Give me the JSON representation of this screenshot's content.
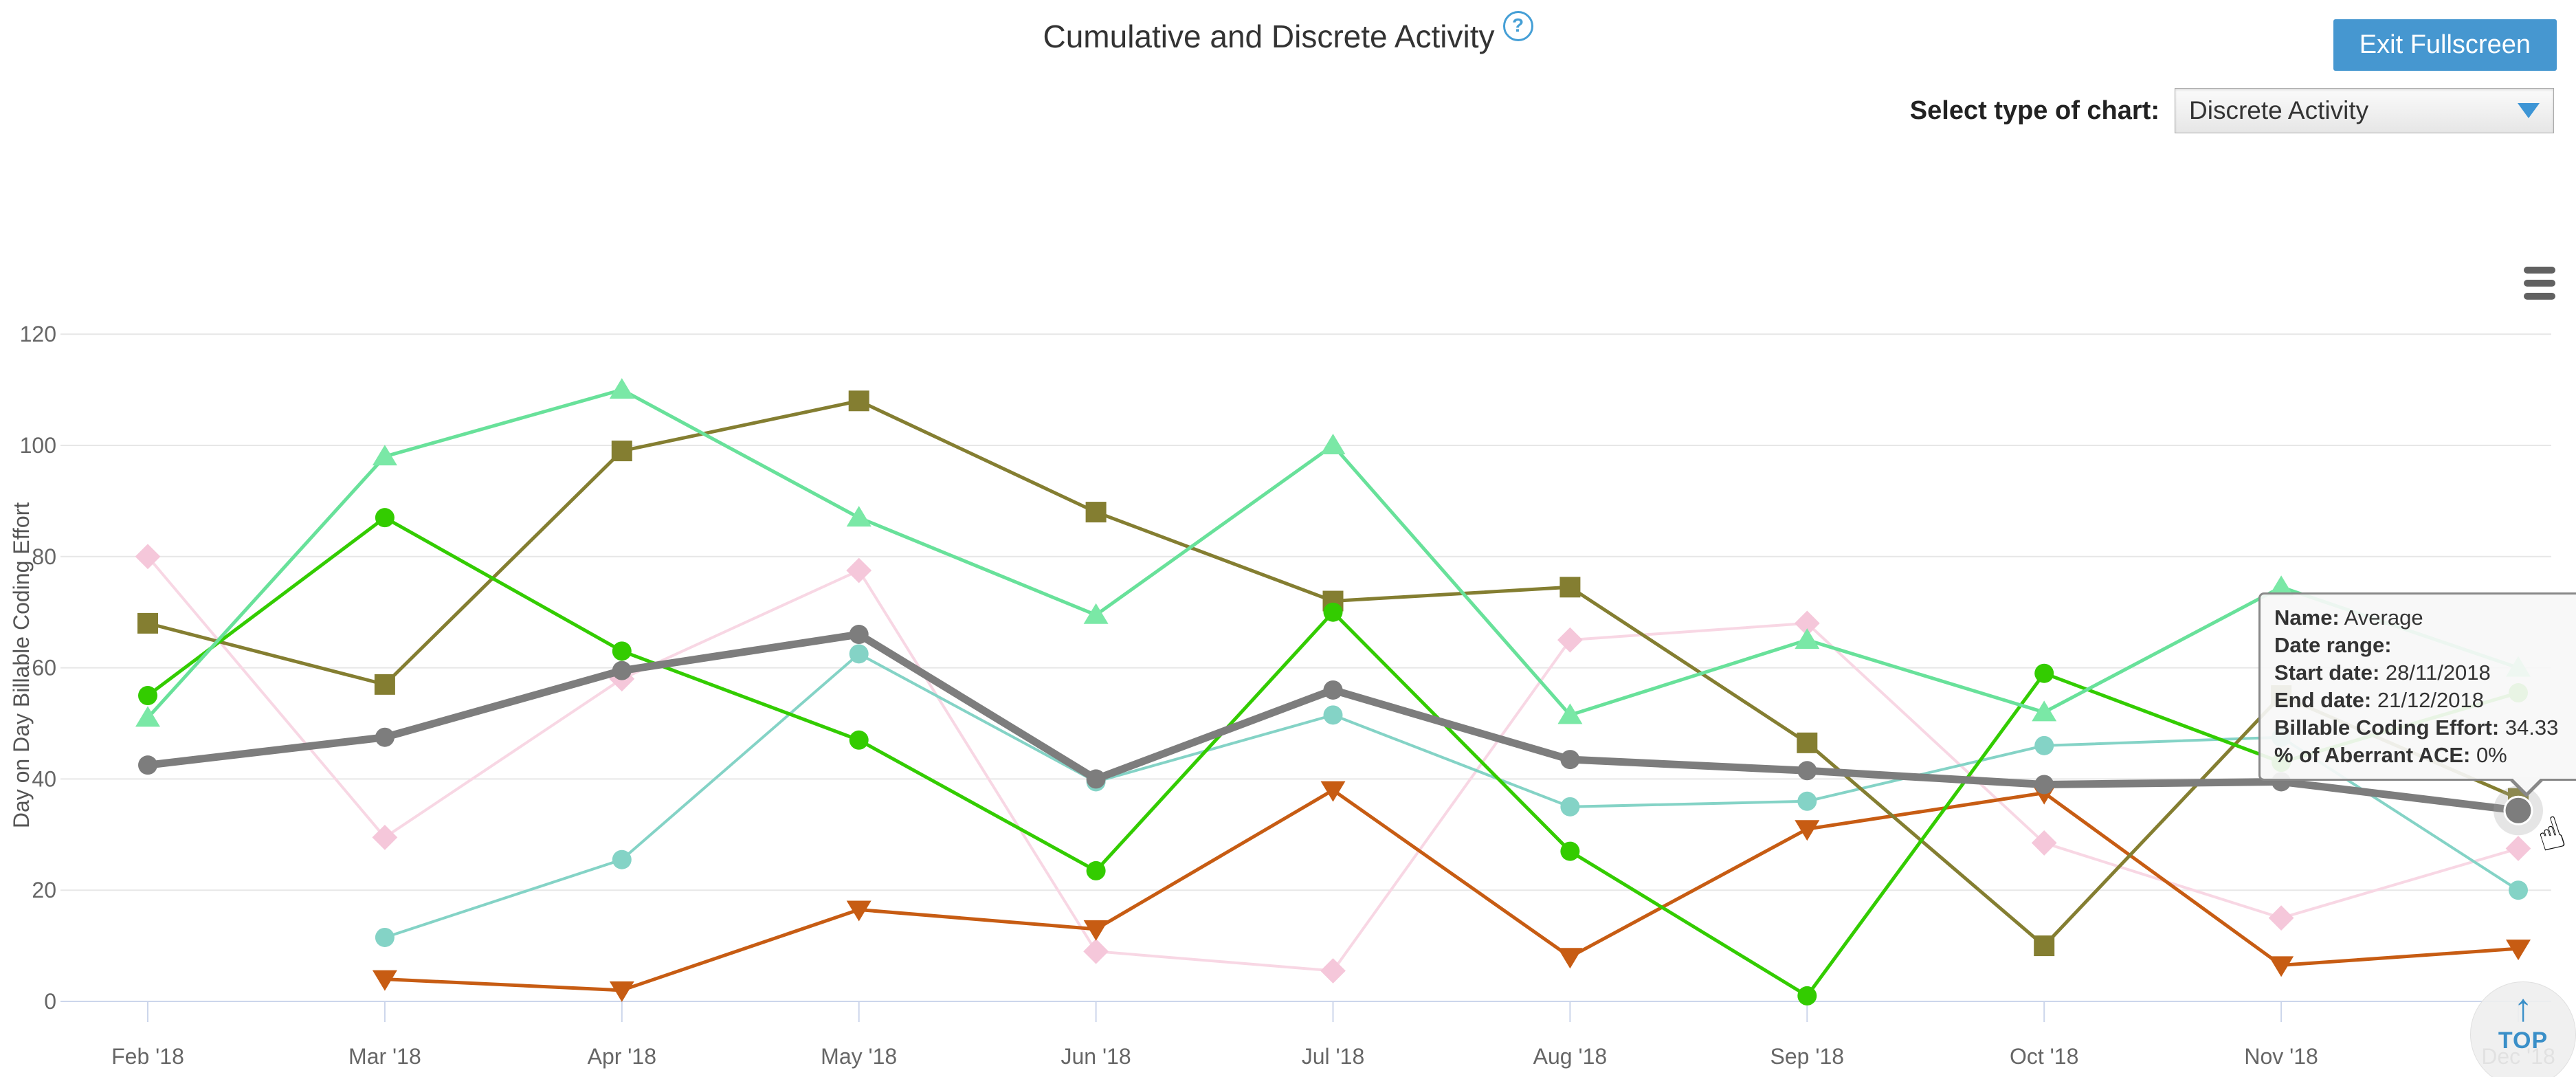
{
  "header": {
    "title": "Cumulative and Discrete Activity",
    "help_icon_glyph": "?"
  },
  "controls": {
    "exit_fullscreen_label": "Exit Fullscreen",
    "select_label": "Select type of chart:",
    "select_value": "Discrete Activity"
  },
  "top_button": {
    "label": "TOP",
    "arrow_glyph": "↑"
  },
  "tooltip": {
    "rows": [
      {
        "label": "Name:",
        "value": "Average"
      },
      {
        "label": "Date range:",
        "value": ""
      },
      {
        "label": "Start date:",
        "value": "28/11/2018"
      },
      {
        "label": "End date:",
        "value": "21/12/2018"
      },
      {
        "label": "Billable Coding Effort:",
        "value": "34.33"
      },
      {
        "label": "% of Aberrant ACE:",
        "value": "0%"
      }
    ]
  },
  "chart_data": {
    "type": "line",
    "title": "Cumulative and Discrete Activity",
    "xlabel": "",
    "ylabel": "Day on Day Billable Coding Effort",
    "ylim": [
      0,
      130
    ],
    "yticks": [
      0,
      20,
      40,
      60,
      80,
      100,
      120
    ],
    "grid": true,
    "legend": "none",
    "categories": [
      "Feb '18",
      "Mar '18",
      "Apr '18",
      "May '18",
      "Jun '18",
      "Jul '18",
      "Aug '18",
      "Sep '18",
      "Oct '18",
      "Nov '18",
      "Dec '18"
    ],
    "series": [
      {
        "id": "pink-diamond-series",
        "name": "",
        "color": "#f8d7e4",
        "marker_color": "#f5c7da",
        "marker": "diamond",
        "line_width": 4,
        "values": [
          80,
          29.5,
          58,
          77.5,
          9,
          5.5,
          65,
          68,
          28.5,
          15,
          27.5
        ]
      },
      {
        "id": "teal-circle-series",
        "name": "",
        "color": "#84d3c6",
        "marker_color": "#84d3c6",
        "marker": "circle",
        "line_width": 4,
        "values": [
          null,
          11.5,
          25.5,
          62.5,
          39.5,
          51.5,
          35,
          36,
          46,
          47.5,
          20
        ]
      },
      {
        "id": "orange-triangle-series",
        "name": "",
        "color": "#c75c13",
        "marker_color": "#c75c13",
        "marker": "triangle-down",
        "line_width": 5,
        "values": [
          null,
          4,
          2,
          16.5,
          13,
          38,
          8,
          31,
          37.5,
          6.5,
          9.5
        ]
      },
      {
        "id": "olive-square-series",
        "name": "",
        "color": "#847e31",
        "marker_color": "#847e31",
        "marker": "square",
        "line_width": 5,
        "values": [
          68,
          57,
          99,
          108,
          88,
          72,
          74.5,
          46.5,
          10,
          55,
          36.5
        ]
      },
      {
        "id": "green-circle-series",
        "name": "",
        "color": "#33cc00",
        "marker_color": "#33cc00",
        "marker": "circle",
        "line_width": 5,
        "values": [
          55,
          87,
          63,
          47,
          23.5,
          70,
          27,
          1,
          59,
          43,
          55.5
        ]
      },
      {
        "id": "aquamarine-triangle-series",
        "name": "",
        "color": "#68e19a",
        "marker_color": "#7ae8a6",
        "marker": "triangle-up",
        "line_width": 5,
        "values": [
          51,
          98,
          110,
          87,
          69.5,
          100,
          51.5,
          65,
          52,
          74.5,
          60
        ]
      },
      {
        "id": "average-series",
        "name": "Average",
        "color": "#7d7d7d",
        "marker_color": "#7d7d7d",
        "marker": "circle",
        "line_width": 11,
        "values": [
          42.5,
          47.5,
          59.5,
          66,
          40,
          56,
          43.5,
          41.5,
          39,
          39.5,
          34.33
        ]
      }
    ],
    "hover_point": {
      "series": "average-series",
      "category": "Dec '18",
      "value": 34.33
    }
  }
}
